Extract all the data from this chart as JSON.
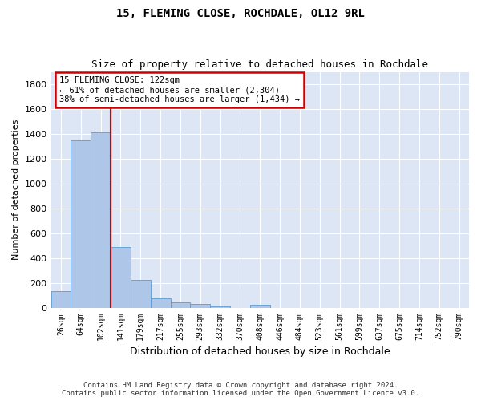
{
  "title1": "15, FLEMING CLOSE, ROCHDALE, OL12 9RL",
  "title2": "Size of property relative to detached houses in Rochdale",
  "xlabel": "Distribution of detached houses by size in Rochdale",
  "ylabel": "Number of detached properties",
  "bar_labels": [
    "26sqm",
    "64sqm",
    "102sqm",
    "141sqm",
    "179sqm",
    "217sqm",
    "255sqm",
    "293sqm",
    "332sqm",
    "370sqm",
    "408sqm",
    "446sqm",
    "484sqm",
    "523sqm",
    "561sqm",
    "599sqm",
    "637sqm",
    "675sqm",
    "714sqm",
    "752sqm",
    "790sqm"
  ],
  "bar_values": [
    135,
    1350,
    1410,
    490,
    225,
    75,
    45,
    27,
    13,
    0,
    20,
    0,
    0,
    0,
    0,
    0,
    0,
    0,
    0,
    0,
    0
  ],
  "bar_color": "#aec6e8",
  "bar_edge_color": "#5b9bd5",
  "vline_x": 2.5,
  "annotation_text": "15 FLEMING CLOSE: 122sqm\n← 61% of detached houses are smaller (2,304)\n38% of semi-detached houses are larger (1,434) →",
  "annotation_box_color": "#ffffff",
  "annotation_box_edge": "#cc0000",
  "vline_color": "#cc0000",
  "ylim": [
    0,
    1900
  ],
  "yticks": [
    0,
    200,
    400,
    600,
    800,
    1000,
    1200,
    1400,
    1600,
    1800
  ],
  "footer": "Contains HM Land Registry data © Crown copyright and database right 2024.\nContains public sector information licensed under the Open Government Licence v3.0.",
  "bg_color": "#dce6f5",
  "grid_color": "#ffffff",
  "fig_bg_color": "#ffffff",
  "title1_fontsize": 10,
  "title2_fontsize": 9
}
